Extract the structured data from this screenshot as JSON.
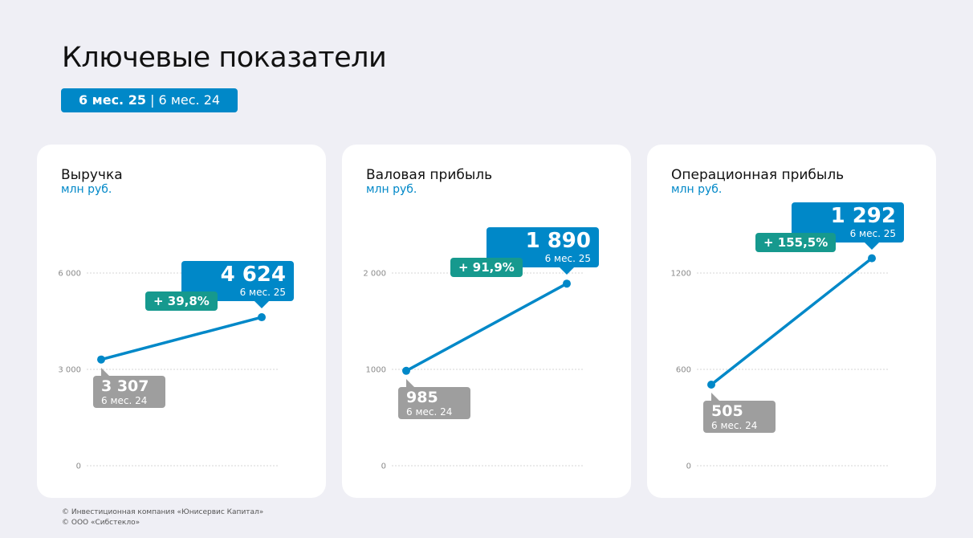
{
  "title": "Ключевые показатели",
  "period": {
    "current": "6 мес. 25",
    "separator": "|",
    "previous": "6 мес. 24"
  },
  "colors": {
    "current": "#0088c8",
    "previous": "#9e9e9e",
    "change": "#16998e"
  },
  "chart_data": [
    {
      "type": "line",
      "title": "Выручка",
      "ylabel": "млн руб.",
      "categories": [
        "6 мес. 24",
        "6 мес. 25"
      ],
      "values": [
        3307,
        4624
      ],
      "value_labels": [
        "3 307",
        "4 624"
      ],
      "change": "+ 39,8%",
      "yticks": [
        0,
        3000,
        6000
      ],
      "ytick_labels": [
        "0",
        "3 000",
        "6 000"
      ],
      "ylim": [
        0,
        6000
      ],
      "grid": true
    },
    {
      "type": "line",
      "title": "Валовая прибыль",
      "ylabel": "млн руб.",
      "categories": [
        "6 мес. 24",
        "6 мес. 25"
      ],
      "values": [
        985,
        1890
      ],
      "value_labels": [
        "985",
        "1 890"
      ],
      "change": "+ 91,9%",
      "yticks": [
        0,
        1000,
        2000
      ],
      "ytick_labels": [
        "0",
        "1000",
        "2 000"
      ],
      "ylim": [
        0,
        2000
      ],
      "grid": true
    },
    {
      "type": "line",
      "title": "Операционная прибыль",
      "ylabel": "млн руб.",
      "categories": [
        "6 мес. 24",
        "6 мес. 25"
      ],
      "values": [
        505,
        1292
      ],
      "value_labels": [
        "505",
        "1 292"
      ],
      "change": "+ 155,5%",
      "yticks": [
        0,
        600,
        1200
      ],
      "ytick_labels": [
        "0",
        "600",
        "1200"
      ],
      "ylim": [
        0,
        1200
      ],
      "grid": true
    }
  ],
  "footer": [
    "© Инвестиционная компания «Юнисервис Капитал»",
    "© ООО «Сибстекло»"
  ]
}
